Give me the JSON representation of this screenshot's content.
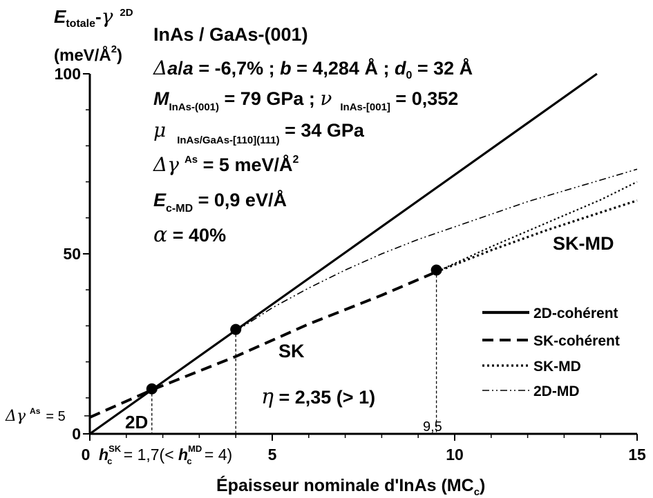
{
  "chart_data": {
    "type": "line",
    "xlabel_main": "Épaisseur nominale d'InAs (MC",
    "xlabel_sub": "c",
    "xlabel_end": ")",
    "ylabel_line1": {
      "E": "E",
      "sub": "totale",
      "dash": "-",
      "gamma": "γ",
      "sup": "2D"
    },
    "ylabel_line2": {
      "main": "(meV/Å",
      "sup": "2",
      "end": ")"
    },
    "xlim": [
      0,
      15
    ],
    "ylim": [
      0,
      100
    ],
    "x_ticks": [
      {
        "value": 0,
        "label": "0"
      },
      {
        "value": 5,
        "label": "5"
      },
      {
        "value": 10,
        "label": "10"
      },
      {
        "value": 15,
        "label": "15"
      }
    ],
    "y_ticks": [
      {
        "value": 0,
        "label": "0"
      },
      {
        "value": 50,
        "label": "50"
      },
      {
        "value": 100,
        "label": "100"
      }
    ],
    "y_extra_label": {
      "value": 5,
      "gamma": "Δγ",
      "sup": "As",
      "text": "= 5"
    },
    "info": {
      "line1": "InAs / GaAs-(001)",
      "line2": {
        "delta": "Δ",
        "a1": "a",
        "slash": "/",
        "a2": "a",
        "rest1": " = -6,7% ; ",
        "b": "b",
        "rest2": " = 4,284 Å ; ",
        "d": "d",
        "dsub": "0",
        "rest3": " = 32 Å"
      },
      "line3": {
        "M": "M",
        "Msub": "InAs-(001)",
        "rest1": " = 79 GPa ; ",
        "nu": "ν",
        "nusub": "InAs-[001]",
        "rest2": " = 0,352"
      },
      "line4": {
        "mu": "μ",
        "musub": "InAs/GaAs-[110](111)",
        "rest": " = 34 GPa"
      },
      "line5": {
        "dg": "Δγ",
        "sup": "As",
        "rest": " = 5 meV/Å",
        "sup2": "2"
      },
      "line6": {
        "E": "E",
        "Esub": "c-MD",
        "rest": " = 0,9 eV/Å"
      },
      "line7": {
        "alpha": "α",
        "rest": "  = 40%"
      }
    },
    "annotations": {
      "sk_md": "SK-MD",
      "sk": "SK",
      "eta": {
        "sym": "η",
        "rest": "  = 2,35 (> 1)"
      },
      "two_d": "2D",
      "x95": "9,5",
      "hc": {
        "h": "h",
        "sub": "c",
        "sup": "SK",
        "mid": " = 1,7(< ",
        "h2": "h",
        "sub2": "c",
        "sup2": "MD",
        "end": " = 4)"
      }
    },
    "legend_position": "bottom-right",
    "series": [
      {
        "name": "2D-cohérent",
        "style": "solid",
        "color": "#000000",
        "points": [
          [
            0,
            0
          ],
          [
            13.9,
            100
          ]
        ]
      },
      {
        "name": "SK-cohérent",
        "style": "dashed",
        "color": "#000000",
        "points": [
          [
            0,
            4.6
          ],
          [
            1.7,
            12.2
          ],
          [
            4,
            21.5
          ],
          [
            6,
            30.5
          ],
          [
            8,
            38.5
          ],
          [
            9.5,
            45
          ]
        ]
      },
      {
        "name": "SK-MD",
        "style": "dotted",
        "color": "#000000",
        "points": [
          [
            9.5,
            45
          ],
          [
            11,
            51
          ],
          [
            12.5,
            56.5
          ],
          [
            14,
            61.5
          ],
          [
            15,
            64.8
          ]
        ]
      },
      {
        "name": "2D-MD",
        "style": "dashdot",
        "color": "#000000",
        "points": [
          [
            4,
            28.5
          ],
          [
            5,
            35
          ],
          [
            6,
            40.5
          ],
          [
            7,
            45.5
          ],
          [
            8,
            50
          ],
          [
            9,
            54
          ],
          [
            10,
            57.5
          ],
          [
            11,
            61
          ],
          [
            12,
            64.5
          ],
          [
            13,
            67.5
          ],
          [
            14,
            70.5
          ],
          [
            15,
            73.5
          ]
        ]
      },
      {
        "name": "",
        "style": "dotted-thin",
        "color": "#000000",
        "points": [
          [
            9.5,
            45
          ],
          [
            11,
            52
          ],
          [
            12.5,
            58.5
          ],
          [
            14,
            65
          ],
          [
            15,
            70
          ]
        ]
      }
    ],
    "markers": [
      {
        "x": 1.7,
        "y": 12.5
      },
      {
        "x": 4,
        "y": 29
      },
      {
        "x": 9.5,
        "y": 45.5
      }
    ],
    "guide_lines": [
      {
        "x": 1.7,
        "y": 12.5
      },
      {
        "x": 4,
        "y": 29
      },
      {
        "x": 9.5,
        "y": 45.5
      }
    ]
  }
}
